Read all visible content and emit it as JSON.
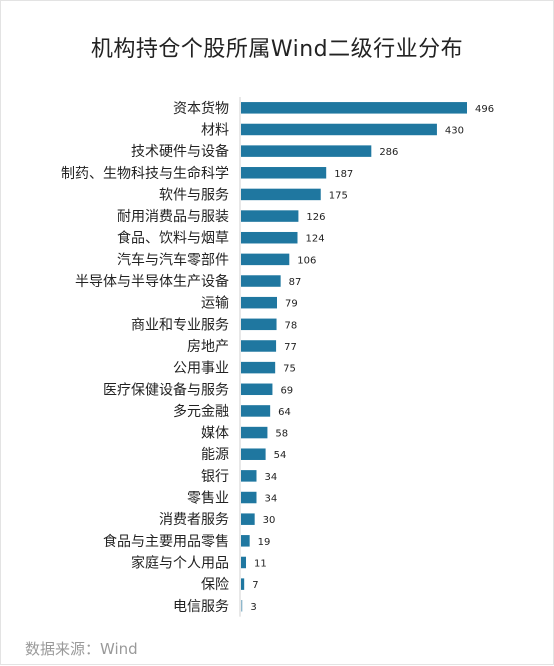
{
  "title": "机构持仓个股所属Wind二级行业分布",
  "source": "数据来源：Wind",
  "colors": {
    "bar": "#1f77a0",
    "text": "#222222",
    "axis": "#d0d0d0",
    "source": "#9a9a9a"
  },
  "chart_data": {
    "type": "bar",
    "orientation": "horizontal",
    "title": "机构持仓个股所属Wind二级行业分布",
    "categories": [
      "资本货物",
      "材料",
      "技术硬件与设备",
      "制药、生物科技与生命科学",
      "软件与服务",
      "耐用消费品与服装",
      "食品、饮料与烟草",
      "汽车与汽车零部件",
      "半导体与半导体生产设备",
      "运输",
      "商业和专业服务",
      "房地产",
      "公用事业",
      "医疗保健设备与服务",
      "多元金融",
      "媒体",
      "能源",
      "银行",
      "零售业",
      "消费者服务",
      "食品与主要用品零售",
      "家庭与个人用品",
      "保险",
      "电信服务"
    ],
    "values": [
      496,
      430,
      286,
      187,
      175,
      126,
      124,
      106,
      87,
      79,
      78,
      77,
      75,
      69,
      64,
      58,
      54,
      34,
      34,
      30,
      19,
      11,
      7,
      3
    ],
    "xlim": [
      0,
      496
    ],
    "data_labels": true,
    "grid": false,
    "legend": "none"
  }
}
